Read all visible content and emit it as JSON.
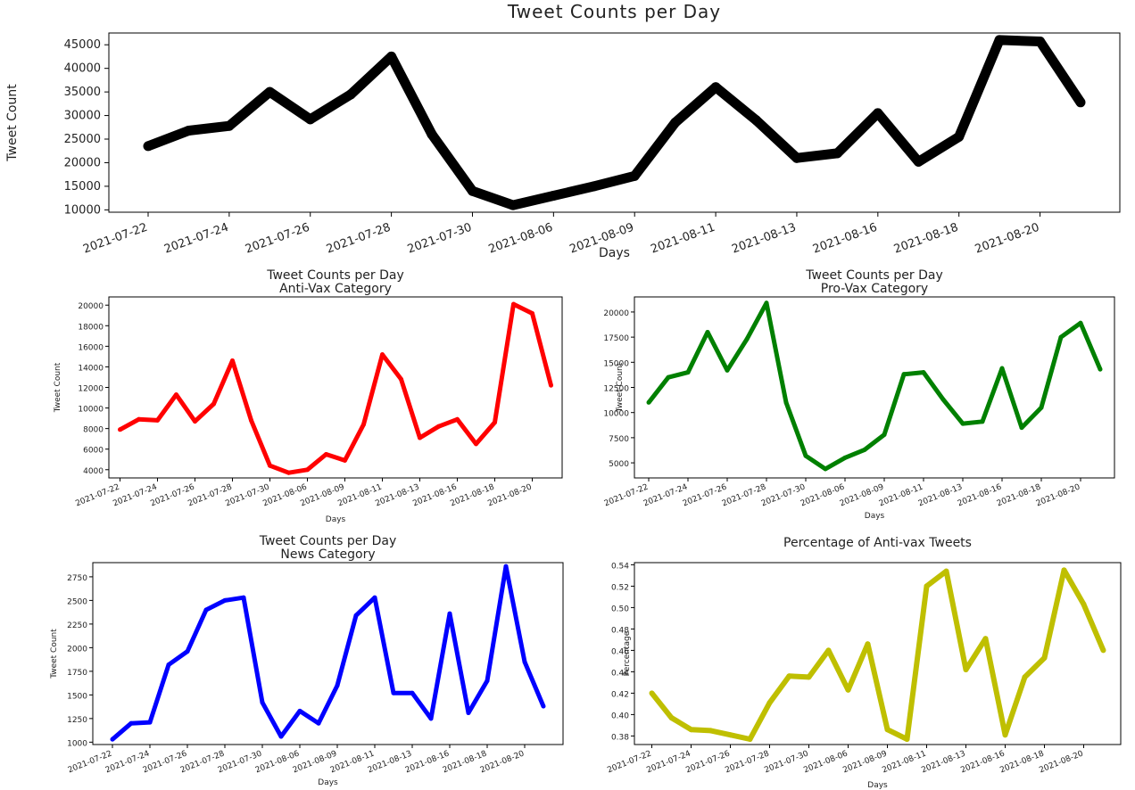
{
  "chart_data": [
    {
      "type": "line",
      "title": "Tweet Counts per Day",
      "xlabel": "Days",
      "ylabel": "Tweet Count",
      "color": "#000000",
      "ylim": [
        9500,
        47500
      ],
      "yticks": [
        10000,
        15000,
        20000,
        25000,
        30000,
        35000,
        40000,
        45000
      ],
      "x": [
        "2021-07-22",
        "2021-07-23",
        "2021-07-24",
        "2021-07-25",
        "2021-07-26",
        "2021-07-27",
        "2021-07-28",
        "2021-07-29",
        "2021-07-30",
        "2021-07-31",
        "2021-08-06",
        "2021-08-07",
        "2021-08-09",
        "2021-08-10",
        "2021-08-11",
        "2021-08-12",
        "2021-08-13",
        "2021-08-15",
        "2021-08-16",
        "2021-08-17",
        "2021-08-18",
        "2021-08-19",
        "2021-08-20",
        "2021-08-21"
      ],
      "xticks": [
        "2021-07-22",
        "2021-07-24",
        "2021-07-26",
        "2021-07-28",
        "2021-07-30",
        "2021-08-06",
        "2021-08-09",
        "2021-08-11",
        "2021-08-13",
        "2021-08-16",
        "2021-08-18",
        "2021-08-20"
      ],
      "values": [
        23500,
        26800,
        27800,
        35000,
        29200,
        34500,
        42500,
        26000,
        14000,
        11000,
        13000,
        15000,
        17200,
        28500,
        36000,
        29000,
        21000,
        22000,
        30500,
        20200,
        25500,
        46000,
        45700,
        32800
      ]
    },
    {
      "type": "line",
      "title": "Tweet Counts per Day",
      "subtitle": "Anti-Vax Category",
      "xlabel": "Days",
      "ylabel": "Tweet Count",
      "color": "#ff0000",
      "ylim": [
        3200,
        20800
      ],
      "yticks": [
        4000,
        6000,
        8000,
        10000,
        12000,
        14000,
        16000,
        18000,
        20000
      ],
      "x": [
        "2021-07-22",
        "2021-07-23",
        "2021-07-24",
        "2021-07-25",
        "2021-07-26",
        "2021-07-27",
        "2021-07-28",
        "2021-07-29",
        "2021-07-30",
        "2021-07-31",
        "2021-08-06",
        "2021-08-07",
        "2021-08-09",
        "2021-08-10",
        "2021-08-11",
        "2021-08-12",
        "2021-08-13",
        "2021-08-15",
        "2021-08-16",
        "2021-08-17",
        "2021-08-18",
        "2021-08-19",
        "2021-08-20",
        "2021-08-21"
      ],
      "xticks": [
        "2021-07-22",
        "2021-07-24",
        "2021-07-26",
        "2021-07-28",
        "2021-07-30",
        "2021-08-06",
        "2021-08-09",
        "2021-08-11",
        "2021-08-13",
        "2021-08-16",
        "2021-08-18",
        "2021-08-20"
      ],
      "values": [
        7900,
        8900,
        8800,
        11300,
        8700,
        10400,
        14600,
        8800,
        4400,
        3700,
        4000,
        5500,
        4900,
        8400,
        15200,
        12800,
        7100,
        8200,
        8900,
        6500,
        8600,
        20100,
        19200,
        12200
      ]
    },
    {
      "type": "line",
      "title": "Tweet Counts per Day",
      "subtitle": "Pro-Vax Category",
      "xlabel": "Days",
      "ylabel": "Tweet Count",
      "color": "#008000",
      "ylim": [
        3500,
        21500
      ],
      "yticks": [
        5000,
        7500,
        10000,
        12500,
        15000,
        17500,
        20000
      ],
      "x": [
        "2021-07-22",
        "2021-07-23",
        "2021-07-24",
        "2021-07-25",
        "2021-07-26",
        "2021-07-27",
        "2021-07-28",
        "2021-07-29",
        "2021-07-30",
        "2021-07-31",
        "2021-08-06",
        "2021-08-07",
        "2021-08-09",
        "2021-08-10",
        "2021-08-11",
        "2021-08-12",
        "2021-08-13",
        "2021-08-15",
        "2021-08-16",
        "2021-08-17",
        "2021-08-18",
        "2021-08-19",
        "2021-08-20",
        "2021-08-21"
      ],
      "xticks": [
        "2021-07-22",
        "2021-07-24",
        "2021-07-26",
        "2021-07-28",
        "2021-07-30",
        "2021-08-06",
        "2021-08-09",
        "2021-08-11",
        "2021-08-13",
        "2021-08-16",
        "2021-08-18",
        "2021-08-20"
      ],
      "values": [
        11000,
        13500,
        14000,
        18000,
        14200,
        17300,
        20900,
        11000,
        5700,
        4400,
        5500,
        6300,
        7800,
        13800,
        14000,
        11300,
        8900,
        9100,
        14400,
        8500,
        10500,
        17500,
        18900,
        14300
      ]
    },
    {
      "type": "line",
      "title": "Tweet Counts per Day",
      "subtitle": "News Category",
      "xlabel": "Days",
      "ylabel": "Tweet Count",
      "color": "#0000ff",
      "ylim": [
        975,
        2900
      ],
      "yticks": [
        1000,
        1250,
        1500,
        1750,
        2000,
        2250,
        2500,
        2750
      ],
      "x": [
        "2021-07-22",
        "2021-07-23",
        "2021-07-24",
        "2021-07-25",
        "2021-07-26",
        "2021-07-27",
        "2021-07-28",
        "2021-07-29",
        "2021-07-30",
        "2021-07-31",
        "2021-08-06",
        "2021-08-07",
        "2021-08-09",
        "2021-08-10",
        "2021-08-11",
        "2021-08-12",
        "2021-08-13",
        "2021-08-15",
        "2021-08-16",
        "2021-08-17",
        "2021-08-18",
        "2021-08-19",
        "2021-08-20",
        "2021-08-21"
      ],
      "xticks": [
        "2021-07-22",
        "2021-07-24",
        "2021-07-26",
        "2021-07-28",
        "2021-07-30",
        "2021-08-06",
        "2021-08-09",
        "2021-08-11",
        "2021-08-13",
        "2021-08-16",
        "2021-08-18",
        "2021-08-20"
      ],
      "values": [
        1030,
        1200,
        1210,
        1820,
        1960,
        2400,
        2500,
        2530,
        1420,
        1060,
        1330,
        1200,
        1600,
        2340,
        2530,
        1520,
        1520,
        1250,
        2360,
        1310,
        1650,
        2860,
        1850,
        1380
      ]
    },
    {
      "type": "line",
      "title": "Percentage of Anti-vax Tweets",
      "xlabel": "Days",
      "ylabel": "Percentage",
      "color": "#bfbf00",
      "ylim": [
        0.372,
        0.542
      ],
      "yticks": [
        0.38,
        0.4,
        0.42,
        0.44,
        0.46,
        0.48,
        0.5,
        0.52,
        0.54
      ],
      "x": [
        "2021-07-22",
        "2021-07-23",
        "2021-07-24",
        "2021-07-25",
        "2021-07-26",
        "2021-07-27",
        "2021-07-28",
        "2021-07-29",
        "2021-07-30",
        "2021-07-31",
        "2021-08-06",
        "2021-08-07",
        "2021-08-09",
        "2021-08-10",
        "2021-08-11",
        "2021-08-12",
        "2021-08-13",
        "2021-08-15",
        "2021-08-16",
        "2021-08-17",
        "2021-08-18",
        "2021-08-19",
        "2021-08-20",
        "2021-08-21"
      ],
      "xticks": [
        "2021-07-22",
        "2021-07-24",
        "2021-07-26",
        "2021-07-28",
        "2021-07-30",
        "2021-08-06",
        "2021-08-09",
        "2021-08-11",
        "2021-08-13",
        "2021-08-16",
        "2021-08-18",
        "2021-08-20"
      ],
      "values": [
        0.42,
        0.397,
        0.386,
        0.385,
        0.381,
        0.377,
        0.411,
        0.436,
        0.435,
        0.46,
        0.423,
        0.466,
        0.386,
        0.377,
        0.52,
        0.534,
        0.442,
        0.471,
        0.381,
        0.435,
        0.453,
        0.535,
        0.503,
        0.46
      ]
    }
  ]
}
